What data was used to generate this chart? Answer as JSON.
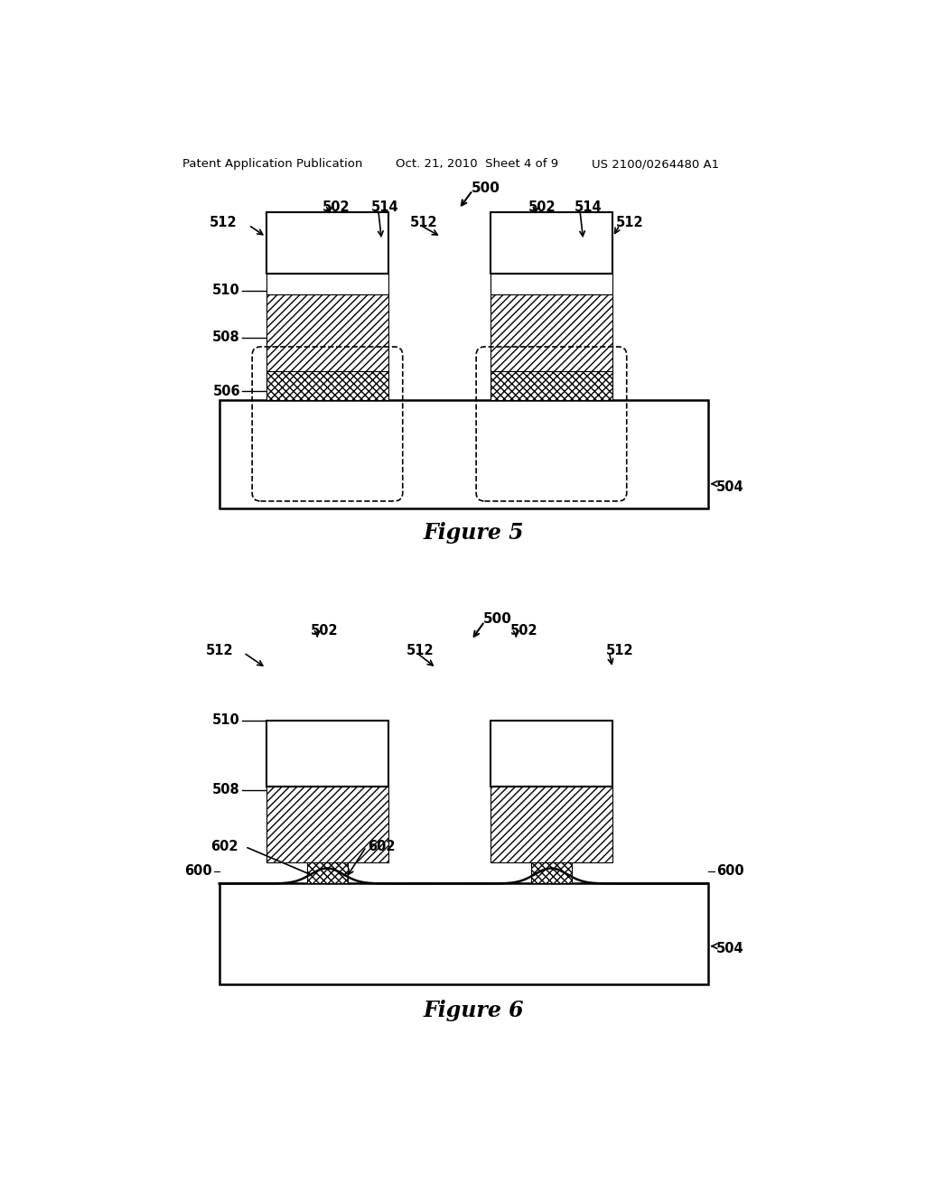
{
  "bg_color": "#ffffff",
  "header_left": "Patent Application Publication",
  "header_mid": "Oct. 21, 2010  Sheet 4 of 9",
  "header_right": "US 2100/0264480 A1",
  "fig5_title": "Figure 5",
  "fig6_title": "Figure 6"
}
